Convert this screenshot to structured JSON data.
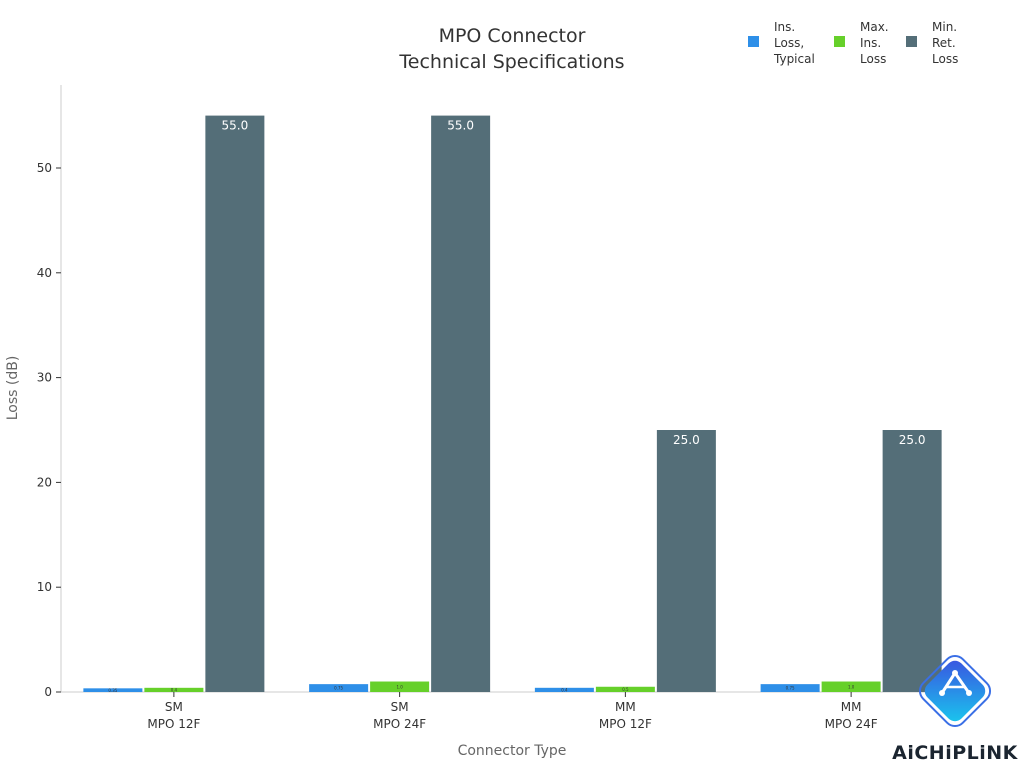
{
  "chart_data": {
    "type": "bar",
    "title": [
      "MPO Connector",
      "Technical Specifications"
    ],
    "xlabel": "Connector Type",
    "ylabel": "Loss (dB)",
    "categories": [
      [
        "SM",
        "MPO 12F"
      ],
      [
        "SM",
        "MPO 24F"
      ],
      [
        "MM",
        "MPO 12F"
      ],
      [
        "MM",
        "MPO 24F"
      ]
    ],
    "series": [
      {
        "name": [
          "Ins.",
          "Loss,",
          "Typical"
        ],
        "color": "#2e8fe8",
        "values": [
          0.35,
          0.75,
          0.4,
          0.75
        ],
        "labels": [
          "0.35",
          "0.75",
          "0.4",
          "0.75"
        ]
      },
      {
        "name": [
          "Max.",
          "Ins.",
          "Loss"
        ],
        "color": "#66d02a",
        "values": [
          0.4,
          1.0,
          0.5,
          1.0
        ],
        "labels": [
          "0.4",
          "1.0",
          "0.5",
          "1.0"
        ]
      },
      {
        "name": [
          "Min.",
          "Ret.",
          "Loss"
        ],
        "color": "#546e78",
        "values": [
          55.0,
          55.0,
          25.0,
          25.0
        ],
        "labels": [
          "55.0",
          "55.0",
          "25.0",
          "25.0"
        ]
      }
    ],
    "yticks": [
      0,
      10,
      20,
      30,
      40,
      50
    ],
    "ylim": [
      0,
      57
    ],
    "grid": false,
    "legend_position": "top-right"
  },
  "logo": {
    "text": "AiCHiPLiNK",
    "icon": "chip-link-logo-icon"
  }
}
